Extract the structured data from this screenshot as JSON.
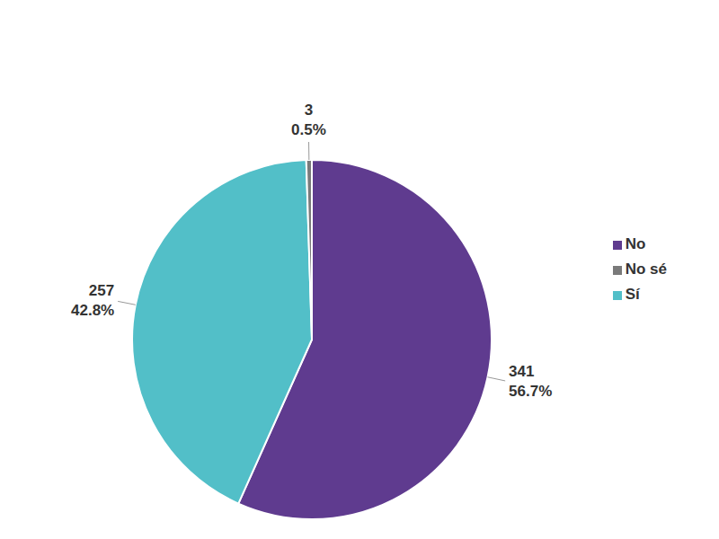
{
  "chart_data": {
    "type": "pie",
    "categories": [
      "No",
      "Sí",
      "No sé"
    ],
    "values": [
      341,
      257,
      3
    ],
    "percentages": [
      56.7,
      42.8,
      0.5
    ],
    "percentage_labels": [
      "56.7%",
      "42.8%",
      "0.5%"
    ],
    "colors": [
      "#5f3b8f",
      "#52bfc8",
      "#7a7a7a"
    ],
    "data_labels": true,
    "legend": "right"
  }
}
